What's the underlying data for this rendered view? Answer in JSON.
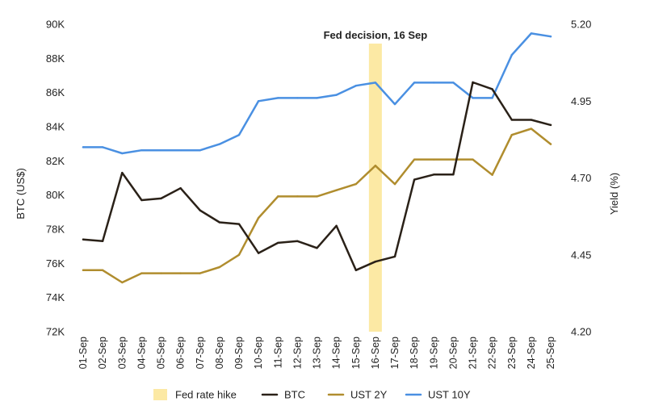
{
  "chart_data": {
    "type": "line",
    "title": "",
    "x": [
      "01-Sep",
      "02-Sep",
      "03-Sep",
      "04-Sep",
      "05-Sep",
      "06-Sep",
      "07-Sep",
      "08-Sep",
      "09-Sep",
      "10-Sep",
      "11-Sep",
      "12-Sep",
      "13-Sep",
      "14-Sep",
      "15-Sep",
      "16-Sep",
      "17-Sep",
      "18-Sep",
      "19-Sep",
      "20-Sep",
      "21-Sep",
      "22-Sep",
      "23-Sep",
      "24-Sep",
      "25-Sep"
    ],
    "left_axis": {
      "label": "BTC (US$)",
      "ylim": [
        72000,
        90000
      ],
      "ticks": [
        72000,
        74000,
        76000,
        78000,
        80000,
        82000,
        84000,
        86000,
        88000,
        90000
      ],
      "tick_labels": [
        "72K",
        "74K",
        "76K",
        "78K",
        "80K",
        "82K",
        "84K",
        "86K",
        "88K",
        "90K"
      ]
    },
    "right_axis": {
      "label": "Yield (%)",
      "ylim": [
        4.2,
        5.2
      ],
      "ticks": [
        4.2,
        4.45,
        4.7,
        4.95,
        5.2
      ],
      "tick_labels": [
        "4.20",
        "4.45",
        "4.70",
        "4.95",
        "5.20"
      ]
    },
    "series": [
      {
        "name": "BTC",
        "axis": "left",
        "color": "#2a2118",
        "values": [
          77400,
          77300,
          81300,
          79700,
          79800,
          80400,
          79100,
          78400,
          78300,
          76600,
          77200,
          77300,
          76900,
          78200,
          75600,
          76100,
          76400,
          80900,
          81200,
          81200,
          86600,
          86200,
          84400,
          84400,
          84100
        ]
      },
      {
        "name": "UST 2Y",
        "axis": "right",
        "color": "#b08d2e",
        "values": [
          4.4,
          4.4,
          4.36,
          4.39,
          4.39,
          4.39,
          4.39,
          4.41,
          4.45,
          4.57,
          4.64,
          4.64,
          4.64,
          4.66,
          4.68,
          4.74,
          4.68,
          4.76,
          4.76,
          4.76,
          4.76,
          4.71,
          4.84,
          4.86,
          4.81
        ]
      },
      {
        "name": "UST 10Y",
        "axis": "right",
        "color": "#4a90e2",
        "values": [
          4.8,
          4.8,
          4.78,
          4.79,
          4.79,
          4.79,
          4.79,
          4.81,
          4.84,
          4.95,
          4.96,
          4.96,
          4.96,
          4.97,
          5.0,
          5.01,
          4.94,
          5.01,
          5.01,
          5.01,
          4.96,
          4.96,
          5.1,
          5.17,
          5.16
        ]
      }
    ],
    "highlight": {
      "name": "Fed rate hike",
      "category": "16-Sep",
      "color": "#fce9a4"
    },
    "annotation": "Fed decision, 16 Sep",
    "grid": false,
    "legend_position": "bottom"
  }
}
